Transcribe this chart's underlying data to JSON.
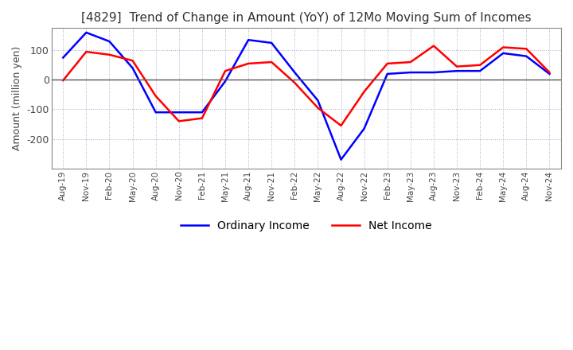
{
  "title": "[4829]  Trend of Change in Amount (YoY) of 12Mo Moving Sum of Incomes",
  "ylabel": "Amount (million yen)",
  "x_labels": [
    "Aug-19",
    "Nov-19",
    "Feb-20",
    "May-20",
    "Aug-20",
    "Nov-20",
    "Feb-21",
    "May-21",
    "Aug-21",
    "Nov-21",
    "Feb-22",
    "May-22",
    "Aug-22",
    "Nov-22",
    "Feb-23",
    "May-23",
    "Aug-23",
    "Nov-23",
    "Feb-24",
    "May-24",
    "Aug-24",
    "Nov-24"
  ],
  "ordinary_income": [
    75,
    160,
    130,
    40,
    -110,
    -110,
    -110,
    -5,
    135,
    125,
    25,
    -70,
    -270,
    -165,
    20,
    25,
    25,
    30,
    30,
    90,
    80,
    20
  ],
  "net_income": [
    -2,
    95,
    85,
    65,
    -55,
    -140,
    -130,
    30,
    55,
    60,
    -10,
    -95,
    -155,
    -40,
    55,
    60,
    115,
    45,
    50,
    110,
    105,
    25
  ],
  "ordinary_color": "#0000ff",
  "net_color": "#ff0000",
  "ylim_min": -300,
  "ylim_max": 175,
  "yticks": [
    100,
    0,
    -100,
    -200
  ],
  "grid_color": "#aaaacc",
  "zero_line_color": "#555555",
  "bg_color": "#ffffff",
  "fig_bg_color": "#ffffff",
  "legend_labels": [
    "Ordinary Income",
    "Net Income"
  ],
  "title_color": "#333333",
  "title_fontsize": 11
}
